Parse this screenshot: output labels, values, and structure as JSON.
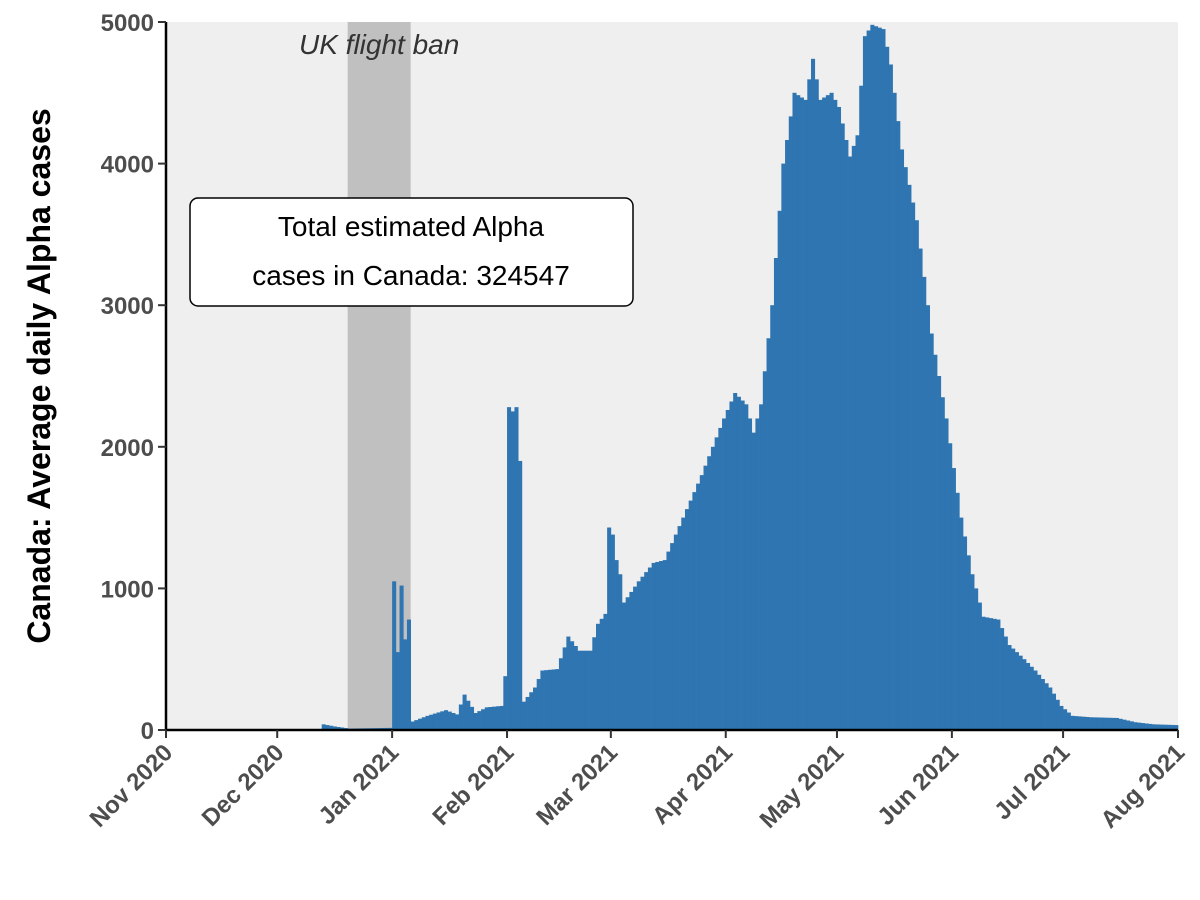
{
  "chart_data": {
    "type": "bar",
    "ylabel": "Canada: Average daily Alpha cases",
    "xlabel": "",
    "xlim": [
      "2020-11-01",
      "2021-08-01"
    ],
    "ylim": [
      0,
      5000
    ],
    "y_ticks": [
      0,
      1000,
      2000,
      3000,
      4000,
      5000
    ],
    "x_ticks": [
      {
        "date": "2020-11-01",
        "label": "Nov 2020"
      },
      {
        "date": "2020-12-01",
        "label": "Dec 2020"
      },
      {
        "date": "2021-01-01",
        "label": "Jan 2021"
      },
      {
        "date": "2021-02-01",
        "label": "Feb 2021"
      },
      {
        "date": "2021-03-01",
        "label": "Mar 2021"
      },
      {
        "date": "2021-04-01",
        "label": "Apr 2021"
      },
      {
        "date": "2021-05-01",
        "label": "May 2021"
      },
      {
        "date": "2021-06-01",
        "label": "Jun 2021"
      },
      {
        "date": "2021-07-01",
        "label": "Jul 2021"
      },
      {
        "date": "2021-08-01",
        "label": "Aug 2021"
      }
    ],
    "grid": false,
    "bar_color": "#2e75b1",
    "panel_color": "#efefef",
    "band": {
      "start": "2020-12-20",
      "end": "2021-01-06",
      "label": "UK flight ban",
      "color": "#c0c0c0"
    },
    "annotation": {
      "lines": [
        "Total estimated Alpha",
        "cases in Canada: 324547"
      ]
    },
    "anchors": [
      [
        "2020-12-13",
        40
      ],
      [
        "2020-12-16",
        25
      ],
      [
        "2020-12-20",
        10
      ],
      [
        "2020-12-31",
        15
      ],
      [
        "2021-01-01",
        1050
      ],
      [
        "2021-01-02",
        550
      ],
      [
        "2021-01-03",
        1020
      ],
      [
        "2021-01-04",
        640
      ],
      [
        "2021-01-05",
        780
      ],
      [
        "2021-01-06",
        60
      ],
      [
        "2021-01-10",
        100
      ],
      [
        "2021-01-15",
        140
      ],
      [
        "2021-01-18",
        110
      ],
      [
        "2021-01-20",
        250
      ],
      [
        "2021-01-23",
        120
      ],
      [
        "2021-01-26",
        160
      ],
      [
        "2021-01-30",
        170
      ],
      [
        "2021-01-31",
        380
      ],
      [
        "2021-02-01",
        2280
      ],
      [
        "2021-02-02",
        2250
      ],
      [
        "2021-02-03",
        2280
      ],
      [
        "2021-02-04",
        1900
      ],
      [
        "2021-02-05",
        200
      ],
      [
        "2021-02-08",
        300
      ],
      [
        "2021-02-10",
        420
      ],
      [
        "2021-02-14",
        430
      ],
      [
        "2021-02-17",
        660
      ],
      [
        "2021-02-20",
        560
      ],
      [
        "2021-02-23",
        560
      ],
      [
        "2021-02-25",
        750
      ],
      [
        "2021-02-27",
        820
      ],
      [
        "2021-02-28",
        1430
      ],
      [
        "2021-03-01",
        1380
      ],
      [
        "2021-03-02",
        1200
      ],
      [
        "2021-03-03",
        1100
      ],
      [
        "2021-03-04",
        900
      ],
      [
        "2021-03-08",
        1050
      ],
      [
        "2021-03-12",
        1180
      ],
      [
        "2021-03-15",
        1200
      ],
      [
        "2021-03-20",
        1500
      ],
      [
        "2021-03-25",
        1800
      ],
      [
        "2021-03-28",
        2000
      ],
      [
        "2021-03-31",
        2200
      ],
      [
        "2021-04-03",
        2380
      ],
      [
        "2021-04-06",
        2300
      ],
      [
        "2021-04-08",
        2100
      ],
      [
        "2021-04-10",
        2300
      ],
      [
        "2021-04-13",
        3000
      ],
      [
        "2021-04-16",
        4000
      ],
      [
        "2021-04-19",
        4500
      ],
      [
        "2021-04-22",
        4450
      ],
      [
        "2021-04-24",
        4740
      ],
      [
        "2021-04-26",
        4450
      ],
      [
        "2021-04-29",
        4500
      ],
      [
        "2021-05-01",
        4400
      ],
      [
        "2021-05-04",
        4050
      ],
      [
        "2021-05-06",
        4200
      ],
      [
        "2021-05-08",
        4900
      ],
      [
        "2021-05-10",
        4980
      ],
      [
        "2021-05-13",
        4950
      ],
      [
        "2021-05-15",
        4700
      ],
      [
        "2021-05-18",
        4100
      ],
      [
        "2021-05-22",
        3600
      ],
      [
        "2021-05-26",
        2800
      ],
      [
        "2021-05-30",
        2200
      ],
      [
        "2021-06-03",
        1500
      ],
      [
        "2021-06-06",
        1100
      ],
      [
        "2021-06-09",
        800
      ],
      [
        "2021-06-13",
        780
      ],
      [
        "2021-06-16",
        600
      ],
      [
        "2021-06-20",
        500
      ],
      [
        "2021-06-23",
        420
      ],
      [
        "2021-06-27",
        300
      ],
      [
        "2021-06-30",
        170
      ],
      [
        "2021-07-03",
        100
      ],
      [
        "2021-07-08",
        90
      ],
      [
        "2021-07-15",
        85
      ],
      [
        "2021-07-20",
        55
      ],
      [
        "2021-07-25",
        40
      ],
      [
        "2021-07-31",
        35
      ]
    ]
  }
}
